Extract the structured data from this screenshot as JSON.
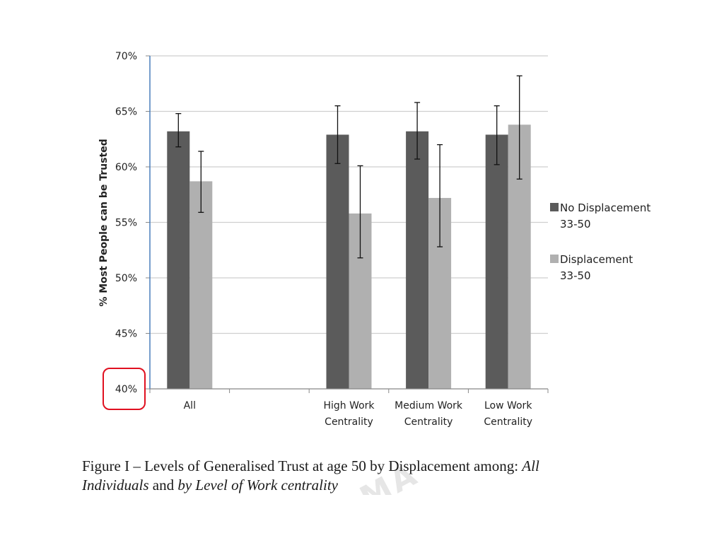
{
  "chart_data": {
    "type": "bar",
    "ylabel": "% Most People can be Trusted",
    "ylim": [
      40,
      70
    ],
    "yticks": [
      "70%",
      "65%",
      "60%",
      "55%",
      "50%",
      "45%",
      "40%"
    ],
    "categories": [
      [
        "All"
      ],
      [
        ""
      ],
      [
        "High Work",
        "Centrality"
      ],
      [
        "Medium Work",
        "Centrality"
      ],
      [
        "Low Work",
        "Centrality"
      ]
    ],
    "series": [
      {
        "name": [
          "No Displacement",
          "33-50"
        ],
        "color": "#5b5b5b",
        "values": [
          63.2,
          null,
          62.9,
          63.2,
          62.9
        ],
        "errors": [
          [
            61.8,
            64.8
          ],
          null,
          [
            60.3,
            65.5
          ],
          [
            60.7,
            65.8
          ],
          [
            60.2,
            65.5
          ]
        ]
      },
      {
        "name": [
          "Displacement",
          "33-50"
        ],
        "color": "#b0b0b0",
        "values": [
          58.7,
          null,
          55.8,
          57.2,
          63.8
        ],
        "errors": [
          [
            55.9,
            61.4
          ],
          null,
          [
            51.8,
            60.1
          ],
          [
            52.8,
            62.0
          ],
          [
            58.9,
            68.2
          ]
        ]
      }
    ],
    "grid": true,
    "legend": "right",
    "highlight": "40%"
  },
  "caption": {
    "part1": "Figure I – Levels of Generalised Trust at age 50 by Displacement among: ",
    "part2": "All",
    "part3": "Individuals",
    "part4": " and ",
    "part5": "by Level of Work centrality"
  },
  "watermark": "MA"
}
